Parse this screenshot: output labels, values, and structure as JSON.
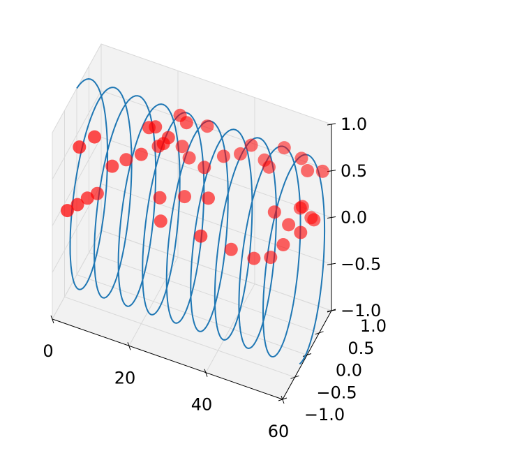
{
  "chart_data": {
    "type": "scatter",
    "title": "",
    "xlabel": "",
    "ylabel": "",
    "zlabel": "",
    "xlim": [
      0,
      60
    ],
    "ylim": [
      -1.0,
      1.0
    ],
    "zlim": [
      -1.0,
      1.0
    ],
    "xticks": [
      0,
      20,
      40,
      60
    ],
    "xtick_labels": [
      "0",
      "20",
      "40",
      "60"
    ],
    "yticks": [
      -1.0,
      -0.5,
      0.0,
      0.5,
      1.0
    ],
    "ytick_labels": [
      "−1.0",
      "−0.5",
      "0.0",
      "0.5",
      "1.0"
    ],
    "zticks": [
      -1.0,
      -0.5,
      0.0,
      0.5,
      1.0
    ],
    "ztick_labels": [
      "−1.0",
      "−0.5",
      "0.0",
      "0.5",
      "1.0"
    ],
    "grid": true,
    "series": [
      {
        "type": "line3d",
        "color": "#1f77b4",
        "description": "helix x = t, y = sin(t), z = cos(t)",
        "t_start": 0,
        "t_end": 60,
        "samples": 700
      },
      {
        "type": "scatter3d",
        "color": "#ff0000",
        "alpha": 0.6,
        "points": [
          [
            2.0,
            -0.7,
            0.05
          ],
          [
            3.5,
            -0.52,
            0.05
          ],
          [
            5.0,
            -0.35,
            0.06
          ],
          [
            6.5,
            -0.18,
            0.05
          ],
          [
            10.5,
            -0.2,
            0.41
          ],
          [
            13.0,
            -0.02,
            0.43
          ],
          [
            4.5,
            -0.6,
            0.72
          ],
          [
            7.5,
            -0.45,
            0.8
          ],
          [
            20.5,
            0.0,
            0.88
          ],
          [
            18.5,
            0.05,
            0.82
          ],
          [
            23.5,
            0.06,
            0.78
          ],
          [
            27.0,
            0.25,
            0.9
          ],
          [
            24.5,
            0.38,
            0.88
          ],
          [
            22.0,
            0.09,
            0.68
          ],
          [
            17.0,
            -0.03,
            0.55
          ],
          [
            20.0,
            0.2,
            0.57
          ],
          [
            25.0,
            0.39,
            0.55
          ],
          [
            27.0,
            0.36,
            0.47
          ],
          [
            30.5,
            0.55,
            0.77
          ],
          [
            31.0,
            0.35,
            0.43
          ],
          [
            35.0,
            0.51,
            0.53
          ],
          [
            38.5,
            0.65,
            0.54
          ],
          [
            40.5,
            0.78,
            0.6
          ],
          [
            43.5,
            0.85,
            0.45
          ],
          [
            48.0,
            0.95,
            0.6
          ],
          [
            52.5,
            0.95,
            0.55
          ],
          [
            54.5,
            0.88,
            0.48
          ],
          [
            58.0,
            0.95,
            0.49
          ],
          [
            57.0,
            0.75,
            0.05
          ],
          [
            54.0,
            0.75,
            0.15
          ],
          [
            51.5,
            0.58,
            0.0
          ],
          [
            48.0,
            0.55,
            0.1
          ],
          [
            52.5,
            0.9,
            0.04
          ],
          [
            55.0,
            0.95,
            -0.05
          ],
          [
            54.5,
            0.6,
            -0.05
          ],
          [
            50.5,
            0.52,
            -0.2
          ],
          [
            47.0,
            0.55,
            -0.4
          ],
          [
            43.5,
            0.42,
            -0.4
          ],
          [
            38.0,
            0.35,
            -0.35
          ],
          [
            32.0,
            0.05,
            -0.15
          ],
          [
            22.0,
            -0.02,
            -0.1
          ],
          [
            21.0,
            0.1,
            0.08
          ],
          [
            26.5,
            0.25,
            0.1
          ],
          [
            33.0,
            0.2,
            0.2
          ],
          [
            45.0,
            0.8,
            0.42
          ]
        ]
      }
    ]
  }
}
